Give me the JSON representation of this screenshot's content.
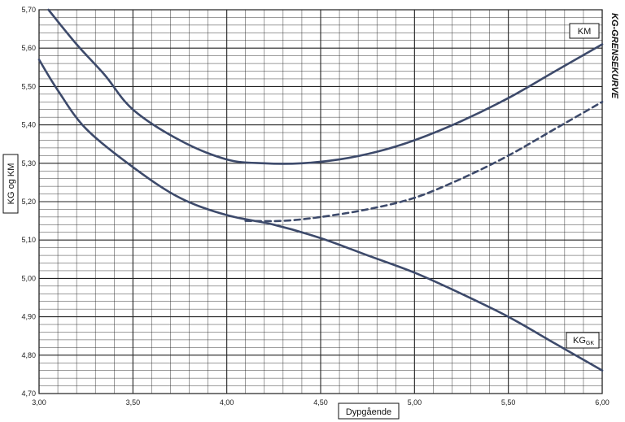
{
  "chart_data": {
    "type": "line",
    "title": "KG-GRENSEKURVE",
    "xlabel": "Dypgående",
    "ylabel": "KG og KM",
    "xlim": [
      3.0,
      6.0
    ],
    "ylim": [
      4.7,
      5.7
    ],
    "x_ticks": [
      "3,00",
      "3,50",
      "4,00",
      "4,50",
      "5,00",
      "5,50",
      "6,00"
    ],
    "y_ticks": [
      "4,70",
      "4,80",
      "4,90",
      "5,00",
      "5,10",
      "5,20",
      "5,30",
      "5,40",
      "5,50",
      "5,60",
      "5,70"
    ],
    "grid": true,
    "series": [
      {
        "name": "KM",
        "style": "solid",
        "points": [
          [
            3.05,
            5.7
          ],
          [
            3.2,
            5.61
          ],
          [
            3.35,
            5.53
          ],
          [
            3.5,
            5.44
          ],
          [
            3.75,
            5.36
          ],
          [
            4.0,
            5.31
          ],
          [
            4.2,
            5.3
          ],
          [
            4.4,
            5.3
          ],
          [
            4.6,
            5.31
          ],
          [
            4.8,
            5.33
          ],
          [
            5.0,
            5.36
          ],
          [
            5.25,
            5.41
          ],
          [
            5.5,
            5.47
          ],
          [
            5.75,
            5.54
          ],
          [
            6.0,
            5.61
          ]
        ]
      },
      {
        "name": "",
        "style": "dashed",
        "points": [
          [
            4.1,
            5.15
          ],
          [
            4.3,
            5.15
          ],
          [
            4.5,
            5.16
          ],
          [
            4.75,
            5.18
          ],
          [
            5.0,
            5.21
          ],
          [
            5.25,
            5.26
          ],
          [
            5.5,
            5.32
          ],
          [
            5.75,
            5.39
          ],
          [
            6.0,
            5.46
          ]
        ]
      },
      {
        "name": "KG",
        "subscript": "GK",
        "style": "solid",
        "points": [
          [
            3.0,
            5.57
          ],
          [
            3.1,
            5.49
          ],
          [
            3.25,
            5.39
          ],
          [
            3.5,
            5.29
          ],
          [
            3.75,
            5.21
          ],
          [
            4.0,
            5.165
          ],
          [
            4.25,
            5.14
          ],
          [
            4.5,
            5.105
          ],
          [
            4.75,
            5.06
          ],
          [
            5.0,
            5.015
          ],
          [
            5.25,
            4.96
          ],
          [
            5.5,
            4.9
          ],
          [
            5.75,
            4.83
          ],
          [
            6.0,
            4.76
          ]
        ]
      }
    ],
    "colors": {
      "curve": "#3d4a6b",
      "grid": "#222222",
      "box_border": "#111111"
    }
  }
}
